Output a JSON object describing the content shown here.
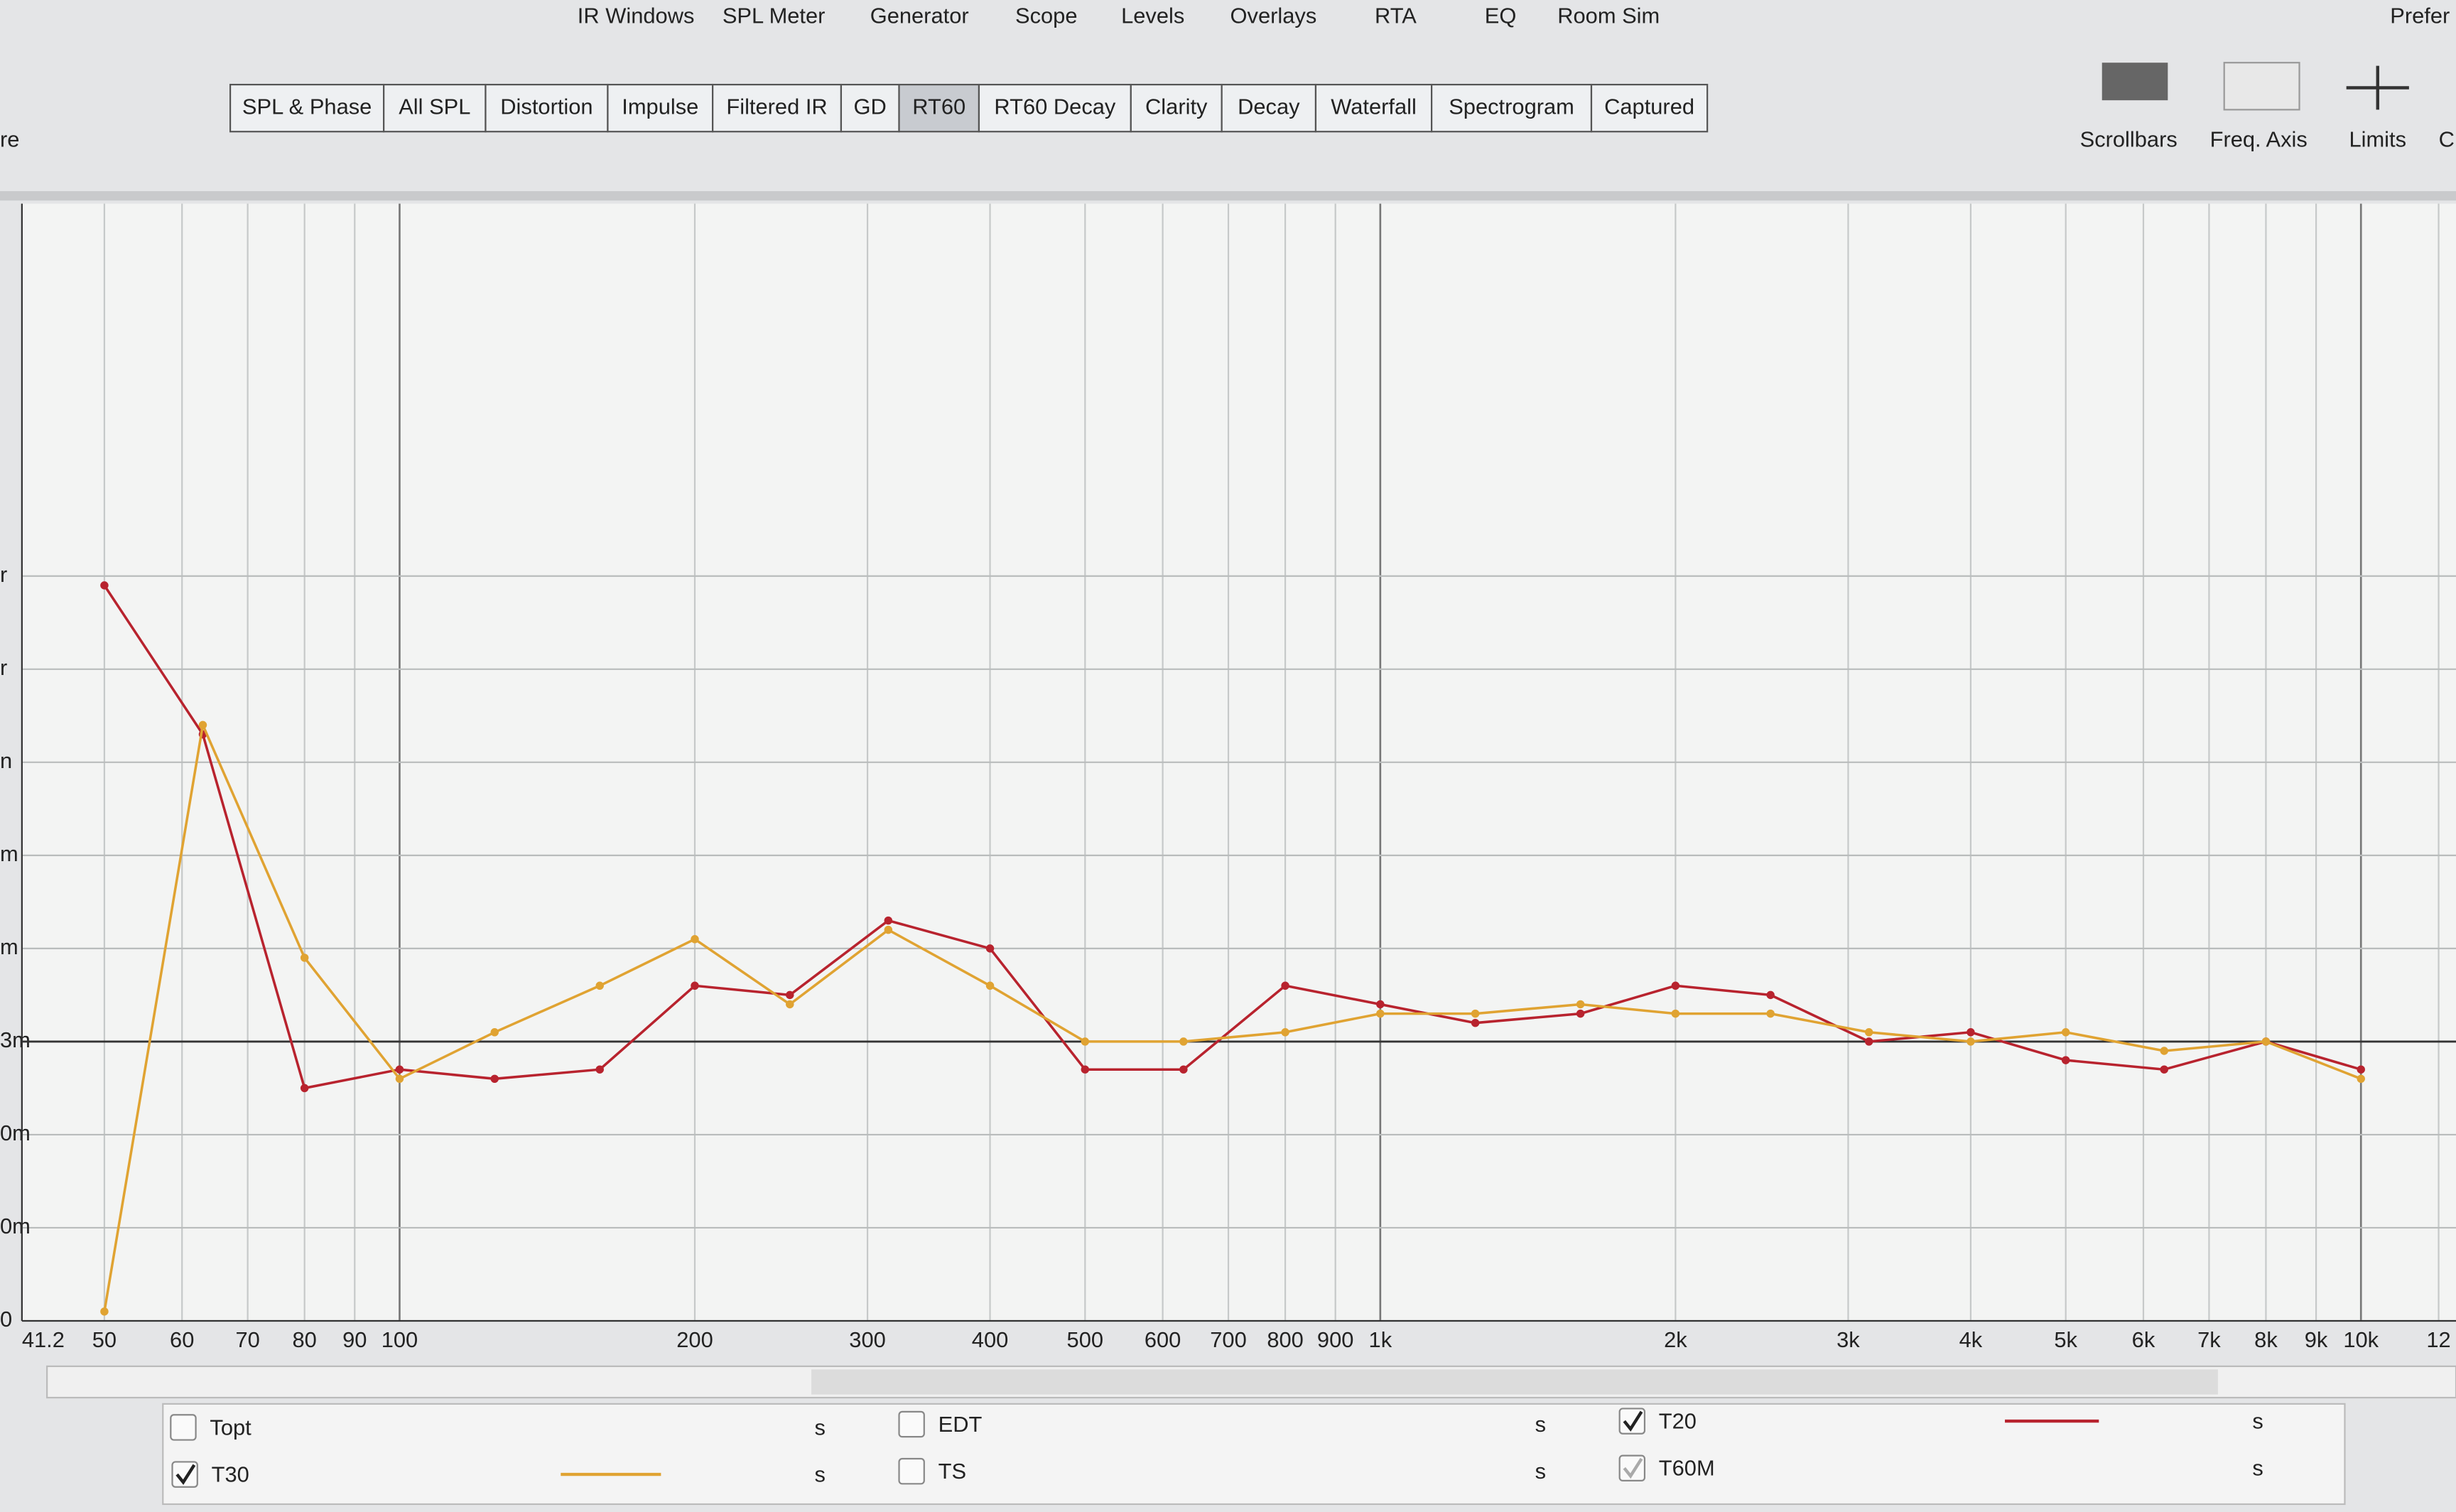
{
  "menu": {
    "left_fragment": "re",
    "items": [
      "IR Windows",
      "SPL Meter",
      "Generator",
      "Scope",
      "Levels",
      "Overlays",
      "RTA",
      "EQ",
      "Room Sim",
      "Prefer"
    ]
  },
  "tabs": {
    "items": [
      "SPL & Phase",
      "All SPL",
      "Distortion",
      "Impulse",
      "Filtered IR",
      "GD",
      "RT60",
      "RT60 Decay",
      "Clarity",
      "Decay",
      "Waterfall",
      "Spectrogram",
      "Captured"
    ],
    "active": 6
  },
  "toolbar": {
    "items": [
      "Scrollbars",
      "Freq. Axis",
      "Limits",
      "C"
    ]
  },
  "graph": {
    "type": "line",
    "x_scale": "log",
    "grid": true,
    "xlim": [
      41.2,
      12500
    ],
    "ylim": [
      0,
      1.2
    ],
    "xticks": [
      41.2,
      50,
      60,
      70,
      80,
      90,
      100,
      200,
      300,
      400,
      500,
      600,
      700,
      800,
      900,
      {
        "value": 1000,
        "label": "1k"
      },
      {
        "value": 2000,
        "label": "2k"
      },
      {
        "value": 3000,
        "label": "3k"
      },
      {
        "value": 4000,
        "label": "4k"
      },
      {
        "value": 5000,
        "label": "5k"
      },
      {
        "value": 6000,
        "label": "6k"
      },
      {
        "value": 7000,
        "label": "7k"
      },
      {
        "value": 8000,
        "label": "8k"
      },
      {
        "value": 9000,
        "label": "9k"
      },
      {
        "value": 10000,
        "label": "10k"
      },
      {
        "value": 12000,
        "label": "12"
      }
    ],
    "yticks": [
      0,
      {
        "value": 0.1,
        "label": "0m"
      },
      {
        "value": 0.2,
        "label": "0m"
      },
      {
        "value": 0.3,
        "label": "3m"
      },
      {
        "value": 0.4,
        "label": "m"
      },
      {
        "value": 0.5,
        "label": "m"
      },
      {
        "value": 0.6,
        "label": "n"
      },
      {
        "value": 0.7,
        "label": "r"
      },
      {
        "value": 0.8,
        "label": "r"
      }
    ],
    "reference_line": 0.3,
    "x": [
      50,
      63,
      80,
      100,
      125,
      160,
      200,
      250,
      315,
      400,
      500,
      630,
      800,
      1000,
      1250,
      1600,
      2000,
      2500,
      3150,
      4000,
      5000,
      6300,
      8000,
      10000
    ],
    "series": [
      {
        "name": "T20",
        "color": "#b8232e",
        "values": [
          0.79,
          0.63,
          0.25,
          0.27,
          0.26,
          0.27,
          0.36,
          0.35,
          0.43,
          0.4,
          0.27,
          0.27,
          0.36,
          0.34,
          0.32,
          0.33,
          0.36,
          0.35,
          0.3,
          0.31,
          0.28,
          0.27,
          0.3,
          0.27
        ]
      },
      {
        "name": "T30",
        "color": "#e0a332",
        "values": [
          0.01,
          0.64,
          0.39,
          0.26,
          0.31,
          0.36,
          0.41,
          0.34,
          0.42,
          0.36,
          0.3,
          0.3,
          0.31,
          0.33,
          0.33,
          0.34,
          0.33,
          0.33,
          0.31,
          0.3,
          0.31,
          0.29,
          0.3,
          0.26
        ]
      }
    ]
  },
  "legend": {
    "items": [
      {
        "name": "Topt",
        "checked": false,
        "unit": "s",
        "color": "#5f9a3c"
      },
      {
        "name": "EDT",
        "checked": false,
        "unit": "s",
        "color": "#3aa6b0"
      },
      {
        "name": "T20",
        "checked": true,
        "unit": "s",
        "color": "#b8232e"
      },
      {
        "name": "T30",
        "checked": true,
        "unit": "s",
        "color": "#e0a332"
      },
      {
        "name": "TS",
        "checked": false,
        "unit": "s",
        "color": "#9b3bb0"
      },
      {
        "name": "T60M",
        "checked": true,
        "unit": "s",
        "color": "#b8b8b8"
      }
    ]
  }
}
